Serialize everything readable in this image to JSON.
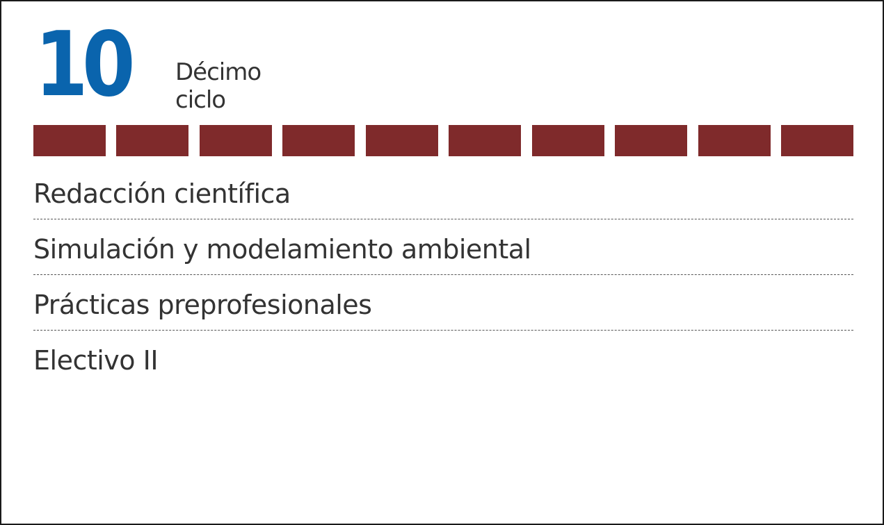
{
  "cycle": {
    "number": "10",
    "name_line1": "Décimo",
    "name_line2": "ciclo",
    "accent_color": "#0a64ad",
    "segment_color": "#7f2a2b",
    "segment_count": 10
  },
  "courses": [
    {
      "label": "Redacción científica"
    },
    {
      "label": "Simulación y modelamiento ambiental"
    },
    {
      "label": "Prácticas preprofesionales"
    },
    {
      "label": "Electivo II"
    }
  ]
}
